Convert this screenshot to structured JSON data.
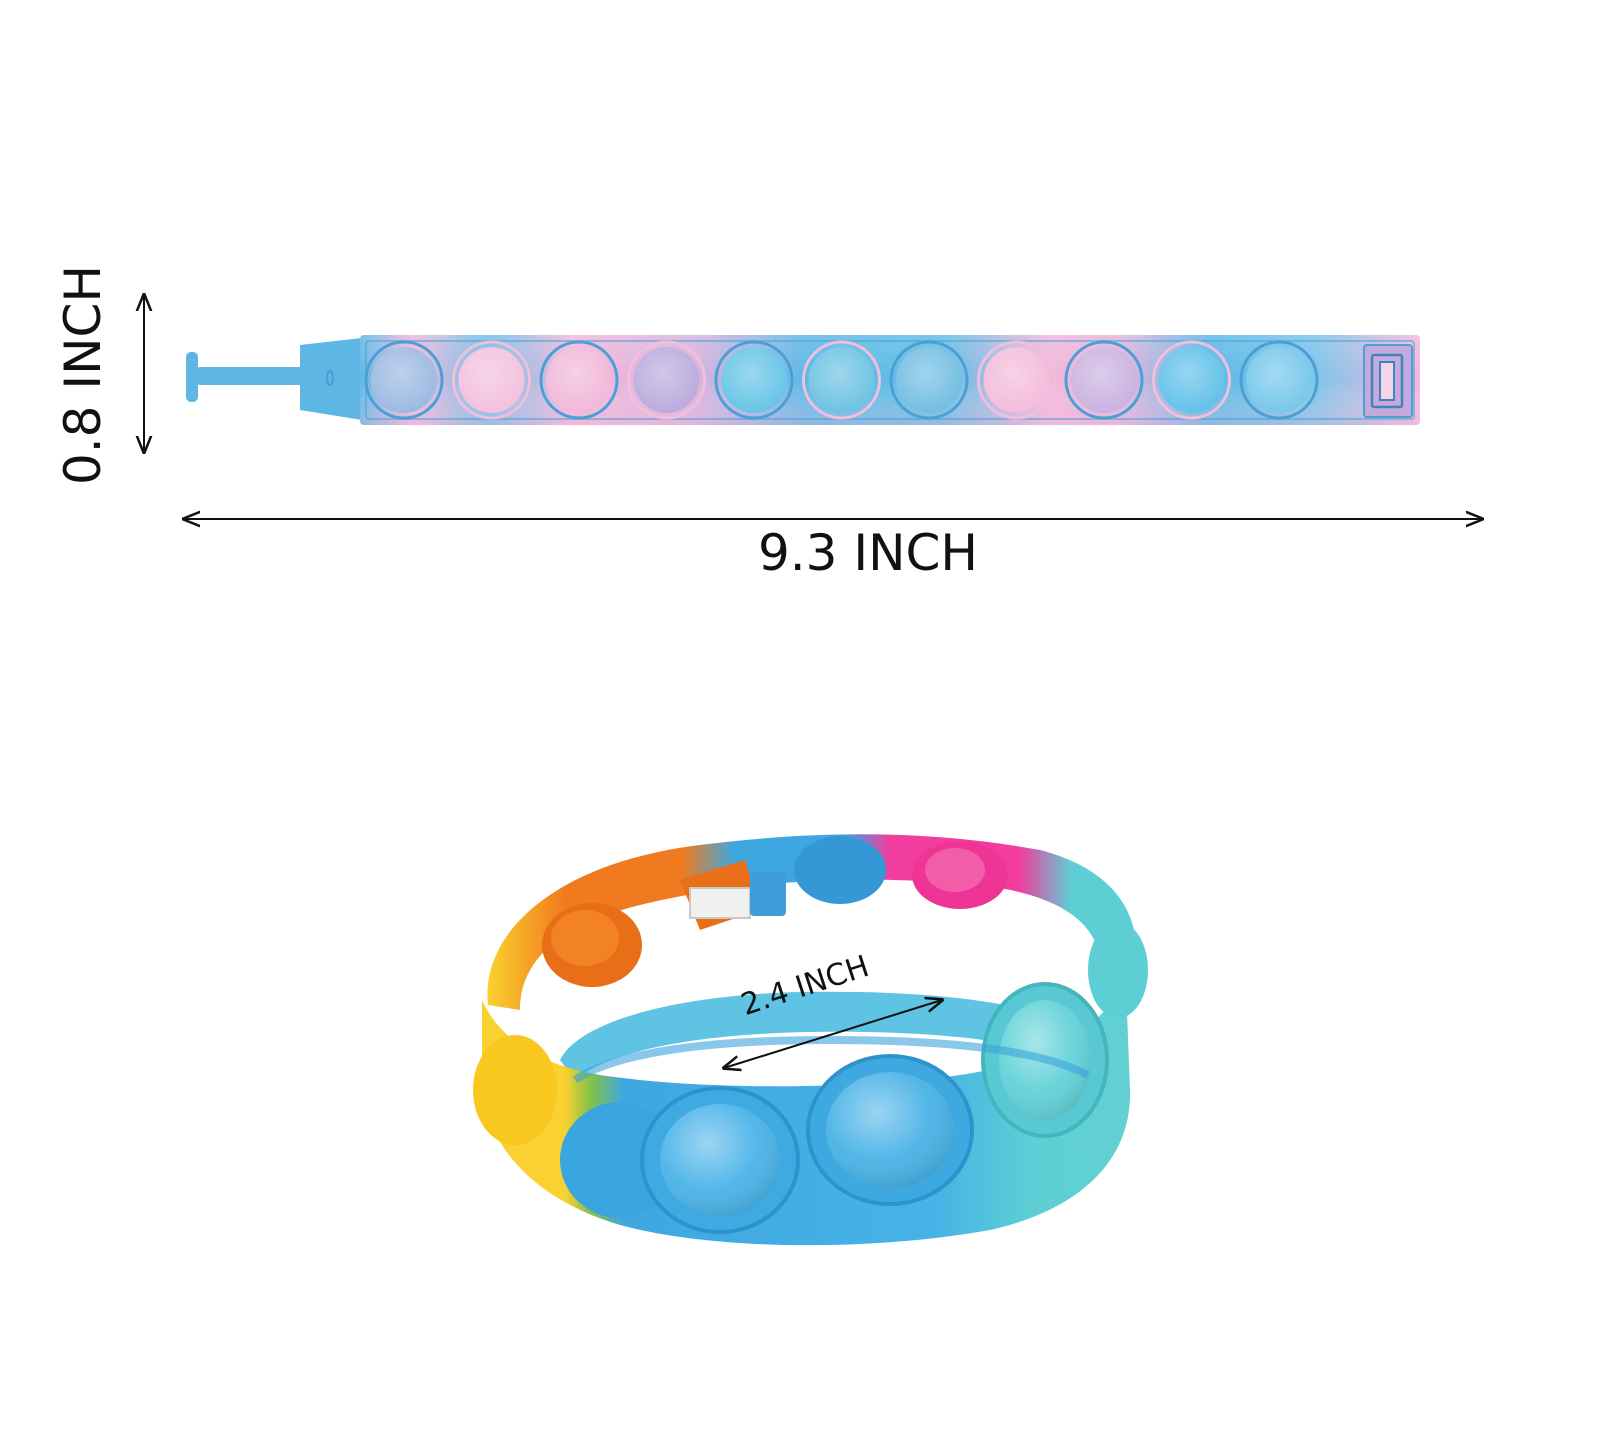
{
  "dimensions": {
    "height_label": "0.8 INCH",
    "length_label": "9.3 INCH",
    "diameter_label": "2.4 INCH"
  },
  "flat_bracelet": {
    "bubble_count": 11,
    "bubble_colors": [
      "#9ab7e2",
      "#f4bfdc",
      "#f1b6d9",
      "#b9a9dc",
      "#63c3e6",
      "#6ac1e3",
      "#6fbde2",
      "#f3badb",
      "#c9b0df",
      "#5fc0e9",
      "#74c6ea"
    ],
    "band_colors": {
      "blue": "#5cb8e6",
      "pink": "#f2b7da",
      "outline": "#4aa9da"
    }
  },
  "round_bracelet": {
    "colors": {
      "orange": "#f07a1f",
      "yellow": "#f9d130",
      "blue": "#3fa7e0",
      "pink": "#f03d9e",
      "teal": "#5dcfd4",
      "light_blue": "#5ec2e8"
    }
  }
}
